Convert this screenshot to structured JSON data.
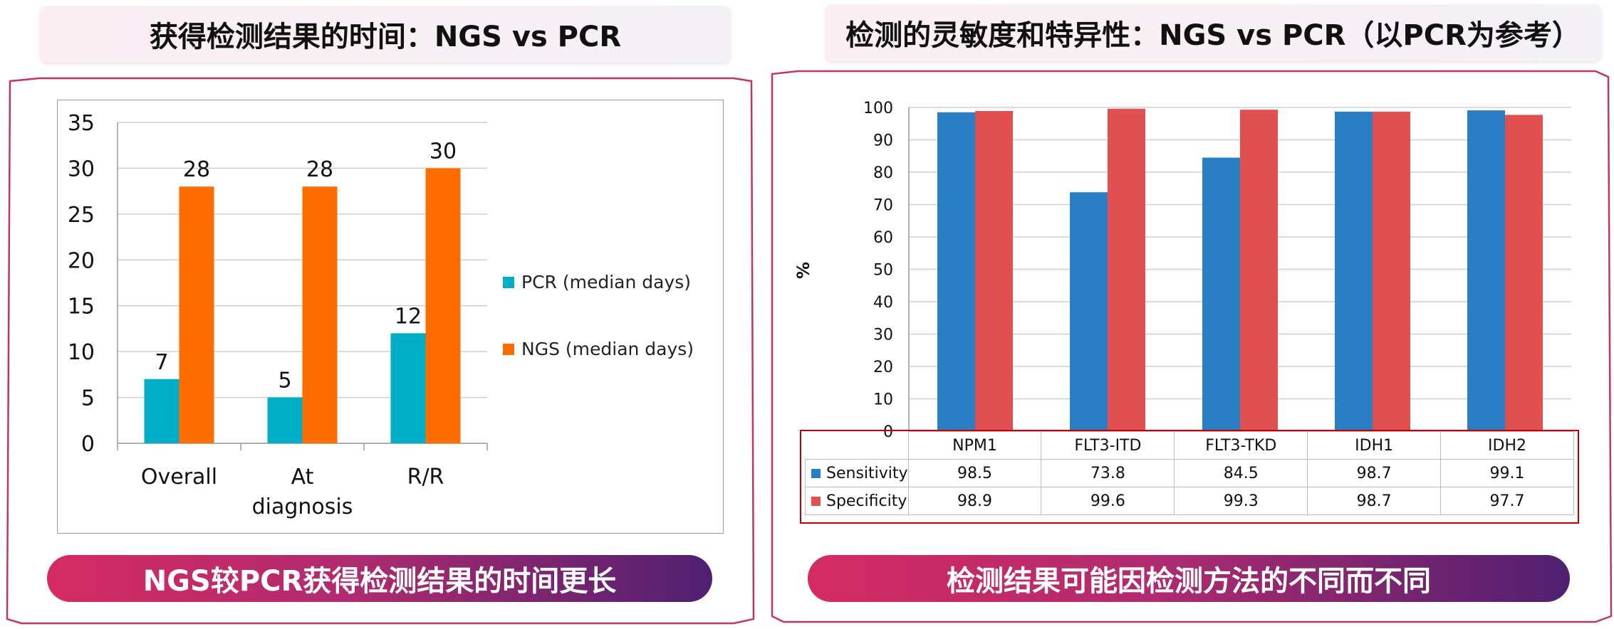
{
  "left_panel": {
    "title": "获得检测结果的时间：NGS vs PCR",
    "conclusion": "NGS较PCR获得检测结果的时间更长"
  },
  "right_panel": {
    "title": "检测的灵敏度和特异性：NGS vs PCR（以PCR为参考）",
    "conclusion": "检测结果可能因检测方法的不同而不同",
    "table_header": [
      "NPM1",
      "FLT3-ITD",
      "FLT3-TKD",
      "IDH1",
      "IDH2"
    ],
    "table_rows": [
      {
        "label": "Sensitivity",
        "values": [
          "98.5",
          "73.8",
          "84.5",
          "98.7",
          "99.1"
        ]
      },
      {
        "label": "Specificity",
        "values": [
          "98.9",
          "99.6",
          "99.3",
          "98.7",
          "97.7"
        ]
      }
    ]
  },
  "colors": {
    "pcr": "#00aec7",
    "ngs": "#ff6d00",
    "sensitivity": "#2a7fc4",
    "specificity": "#e05050",
    "frame": "#c0336b"
  },
  "chart_data": [
    {
      "type": "bar",
      "categories": [
        [
          "Overall"
        ],
        [
          "At",
          "diagnosis"
        ],
        [
          "R/R"
        ]
      ],
      "series": [
        {
          "name": "PCR (median days)",
          "values": [
            7,
            5,
            12
          ]
        },
        {
          "name": "NGS (median days)",
          "values": [
            28,
            28,
            30
          ]
        }
      ],
      "data_labels": true,
      "ylim": [
        0,
        35
      ],
      "yticks": [
        0,
        5,
        10,
        15,
        20,
        25,
        30,
        35
      ],
      "grid": true,
      "legend_position": "right"
    },
    {
      "type": "bar",
      "categories": [
        "NPM1",
        "FLT3-ITD",
        "FLT3-TKD",
        "IDH1",
        "IDH2"
      ],
      "series": [
        {
          "name": "Sensitivity",
          "values": [
            98.5,
            73.8,
            84.5,
            98.7,
            99.1
          ]
        },
        {
          "name": "Specificity",
          "values": [
            98.9,
            99.6,
            99.3,
            98.7,
            97.7
          ]
        }
      ],
      "ylabel": "%",
      "ylim": [
        0,
        100
      ],
      "yticks": [
        0,
        10,
        20,
        30,
        40,
        50,
        60,
        70,
        80,
        90,
        100
      ],
      "grid": true,
      "legend_position": "data-table"
    }
  ]
}
